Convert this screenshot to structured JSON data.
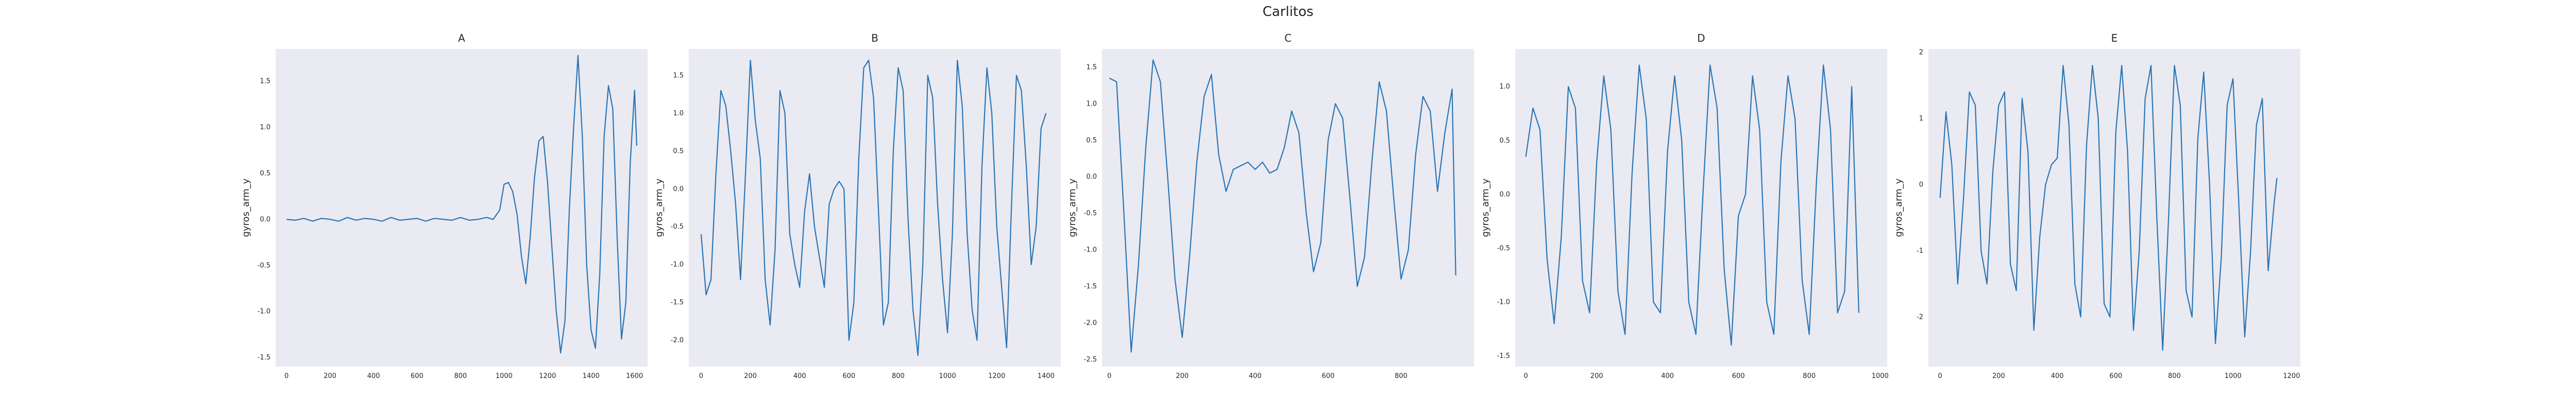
{
  "title": "Carlitos",
  "colors": {
    "line": "#2a76b5",
    "panel": "#eaeaf2"
  },
  "chart_data": [
    {
      "type": "line",
      "title": "A",
      "xlabel": "",
      "ylabel": "gyros_arm_y",
      "xlim": [
        -50,
        1660
      ],
      "ylim": [
        -1.6,
        1.85
      ],
      "xticks": [
        0,
        200,
        400,
        600,
        800,
        1000,
        1200,
        1400,
        1600
      ],
      "yticks": [
        -1.5,
        -1.0,
        -0.5,
        0.0,
        0.5,
        1.0,
        1.5
      ],
      "grid": false,
      "x": [
        0,
        40,
        80,
        120,
        160,
        200,
        240,
        280,
        320,
        360,
        400,
        440,
        480,
        520,
        560,
        600,
        640,
        680,
        720,
        760,
        800,
        840,
        880,
        920,
        950,
        980,
        1000,
        1020,
        1040,
        1060,
        1080,
        1100,
        1120,
        1140,
        1160,
        1180,
        1200,
        1220,
        1240,
        1260,
        1280,
        1300,
        1320,
        1340,
        1360,
        1380,
        1400,
        1420,
        1440,
        1460,
        1480,
        1500,
        1520,
        1540,
        1560,
        1580,
        1600,
        1610
      ],
      "y": [
        0.0,
        -0.01,
        0.01,
        -0.02,
        0.01,
        0.0,
        -0.02,
        0.02,
        -0.01,
        0.01,
        0.0,
        -0.02,
        0.02,
        -0.01,
        0.0,
        0.01,
        -0.02,
        0.01,
        0.0,
        -0.01,
        0.02,
        -0.01,
        0.0,
        0.02,
        0.0,
        0.1,
        0.38,
        0.4,
        0.3,
        0.05,
        -0.4,
        -0.7,
        -0.2,
        0.45,
        0.85,
        0.9,
        0.4,
        -0.3,
        -1.0,
        -1.45,
        -1.1,
        0.1,
        1.0,
        1.78,
        0.9,
        -0.5,
        -1.2,
        -1.4,
        -0.6,
        0.9,
        1.45,
        1.2,
        -0.2,
        -1.3,
        -0.9,
        0.6,
        1.4,
        0.8
      ]
    },
    {
      "type": "line",
      "title": "B",
      "xlabel": "",
      "ylabel": "gyros_arm_y",
      "xlim": [
        -50,
        1460
      ],
      "ylim": [
        -2.35,
        1.85
      ],
      "xticks": [
        0,
        200,
        400,
        600,
        800,
        1000,
        1200,
        1400
      ],
      "yticks": [
        -2.0,
        -1.5,
        -1.0,
        -0.5,
        0.0,
        0.5,
        1.0,
        1.5
      ],
      "grid": false,
      "x": [
        0,
        20,
        40,
        60,
        80,
        100,
        120,
        140,
        160,
        180,
        200,
        220,
        240,
        260,
        280,
        300,
        320,
        340,
        360,
        380,
        400,
        420,
        440,
        460,
        480,
        500,
        520,
        540,
        560,
        580,
        600,
        620,
        640,
        660,
        680,
        700,
        720,
        740,
        760,
        780,
        800,
        820,
        840,
        860,
        880,
        900,
        920,
        940,
        960,
        980,
        1000,
        1020,
        1040,
        1060,
        1080,
        1100,
        1120,
        1140,
        1160,
        1180,
        1200,
        1220,
        1240,
        1260,
        1280,
        1300,
        1320,
        1340,
        1360,
        1380,
        1400
      ],
      "y": [
        -0.6,
        -1.4,
        -1.2,
        0.2,
        1.3,
        1.1,
        0.5,
        -0.2,
        -1.2,
        0.2,
        1.7,
        0.9,
        0.4,
        -1.2,
        -1.8,
        -0.8,
        1.3,
        1.0,
        -0.6,
        -1.0,
        -1.3,
        -0.3,
        0.2,
        -0.5,
        -0.9,
        -1.3,
        -0.2,
        0.0,
        0.1,
        0.0,
        -2.0,
        -1.5,
        0.4,
        1.6,
        1.7,
        1.2,
        -0.3,
        -1.8,
        -1.5,
        0.5,
        1.6,
        1.3,
        -0.4,
        -1.6,
        -2.2,
        -1.0,
        1.5,
        1.2,
        -0.2,
        -1.2,
        -1.9,
        -0.6,
        1.7,
        1.1,
        -0.6,
        -1.6,
        -2.0,
        0.3,
        1.6,
        1.0,
        -0.5,
        -1.3,
        -2.1,
        -0.2,
        1.5,
        1.3,
        0.3,
        -1.0,
        -0.5,
        0.8,
        1.0
      ]
    },
    {
      "type": "line",
      "title": "C",
      "xlabel": "",
      "ylabel": "gyros_arm_y",
      "xlim": [
        -20,
        1000
      ],
      "ylim": [
        -2.6,
        1.75
      ],
      "xticks": [
        0,
        200,
        400,
        600,
        800
      ],
      "yticks": [
        -2.5,
        -2.0,
        -1.5,
        -1.0,
        -0.5,
        0.0,
        0.5,
        1.0,
        1.5
      ],
      "grid": false,
      "x": [
        0,
        20,
        40,
        60,
        80,
        100,
        120,
        140,
        160,
        180,
        200,
        220,
        240,
        260,
        280,
        300,
        320,
        340,
        360,
        380,
        400,
        420,
        440,
        460,
        480,
        500,
        520,
        540,
        560,
        580,
        600,
        620,
        640,
        660,
        680,
        700,
        720,
        740,
        760,
        780,
        800,
        820,
        840,
        860,
        880,
        900,
        920,
        940,
        950
      ],
      "y": [
        1.35,
        1.3,
        -0.5,
        -2.4,
        -1.2,
        0.4,
        1.6,
        1.3,
        0.0,
        -1.4,
        -2.2,
        -1.1,
        0.2,
        1.1,
        1.4,
        0.3,
        -0.2,
        0.1,
        0.15,
        0.2,
        0.1,
        0.2,
        0.05,
        0.1,
        0.4,
        0.9,
        0.6,
        -0.5,
        -1.3,
        -0.9,
        0.5,
        1.0,
        0.8,
        -0.3,
        -1.5,
        -1.1,
        0.2,
        1.3,
        0.9,
        -0.3,
        -1.4,
        -1.0,
        0.3,
        1.1,
        0.9,
        -0.2,
        0.6,
        1.2,
        -1.35
      ]
    },
    {
      "type": "line",
      "title": "D",
      "xlabel": "",
      "ylabel": "gyros_arm_y",
      "xlim": [
        -30,
        1020
      ],
      "ylim": [
        -1.6,
        1.35
      ],
      "xticks": [
        0,
        200,
        400,
        600,
        800,
        1000
      ],
      "yticks": [
        -1.5,
        -1.0,
        -0.5,
        0.0,
        0.5,
        1.0
      ],
      "grid": false,
      "x": [
        0,
        20,
        40,
        60,
        80,
        100,
        120,
        140,
        160,
        180,
        200,
        220,
        240,
        260,
        280,
        300,
        320,
        340,
        360,
        380,
        400,
        420,
        440,
        460,
        480,
        500,
        520,
        540,
        560,
        580,
        600,
        620,
        640,
        660,
        680,
        700,
        720,
        740,
        760,
        780,
        800,
        820,
        840,
        860,
        880,
        900,
        920,
        940
      ],
      "y": [
        0.35,
        0.8,
        0.6,
        -0.6,
        -1.2,
        -0.4,
        1.0,
        0.8,
        -0.8,
        -1.1,
        0.3,
        1.1,
        0.6,
        -0.9,
        -1.3,
        0.2,
        1.2,
        0.7,
        -1.0,
        -1.1,
        0.4,
        1.1,
        0.5,
        -1.0,
        -1.3,
        0.0,
        1.2,
        0.8,
        -0.7,
        -1.4,
        -0.2,
        0.0,
        1.1,
        0.6,
        -1.0,
        -1.3,
        0.3,
        1.1,
        0.7,
        -0.8,
        -1.3,
        0.1,
        1.2,
        0.6,
        -1.1,
        -0.9,
        1.0,
        -1.1
      ]
    },
    {
      "type": "line",
      "title": "E",
      "xlabel": "",
      "ylabel": "gyros_arm_y",
      "xlim": [
        -40,
        1230
      ],
      "ylim": [
        -2.75,
        2.05
      ],
      "xticks": [
        0,
        200,
        400,
        600,
        800,
        1000,
        1200
      ],
      "yticks": [
        -2,
        -1,
        0,
        1,
        2
      ],
      "grid": false,
      "x": [
        0,
        20,
        40,
        60,
        80,
        100,
        120,
        140,
        160,
        180,
        200,
        220,
        240,
        260,
        280,
        300,
        320,
        340,
        360,
        380,
        400,
        420,
        440,
        460,
        480,
        500,
        520,
        540,
        560,
        580,
        600,
        620,
        640,
        660,
        680,
        700,
        720,
        740,
        760,
        780,
        800,
        820,
        840,
        860,
        880,
        900,
        920,
        940,
        960,
        980,
        1000,
        1020,
        1040,
        1060,
        1080,
        1100,
        1120,
        1140,
        1150
      ],
      "y": [
        -0.2,
        1.1,
        0.3,
        -1.5,
        -0.2,
        1.4,
        1.2,
        -1.0,
        -1.5,
        0.2,
        1.2,
        1.4,
        -1.2,
        -1.6,
        1.3,
        0.5,
        -2.2,
        -0.8,
        0.0,
        0.3,
        0.4,
        1.8,
        0.9,
        -1.5,
        -2.0,
        0.6,
        1.8,
        1.0,
        -1.8,
        -2.0,
        0.8,
        1.8,
        0.5,
        -2.2,
        -1.0,
        1.3,
        1.8,
        -0.5,
        -2.5,
        -0.5,
        1.8,
        1.2,
        -1.6,
        -2.0,
        0.7,
        1.7,
        0.0,
        -2.4,
        -1.1,
        1.2,
        1.6,
        -0.3,
        -2.3,
        -1.0,
        0.9,
        1.3,
        -1.3,
        -0.3,
        0.1
      ]
    }
  ]
}
